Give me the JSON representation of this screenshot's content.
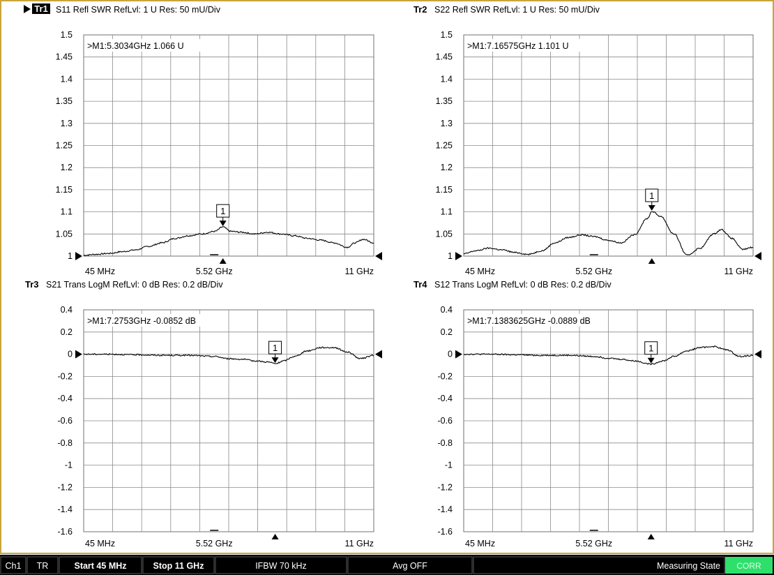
{
  "chart_data": [
    {
      "type": "line",
      "trace_id": "Tr1",
      "trace_active": true,
      "parameter": "S11",
      "format": "Refl SWR",
      "ref_level": "RefLvl: 1  U",
      "resolution": "Res: 50 mU/Div",
      "y_ticks": [
        "1.5",
        "1.45",
        "1.4",
        "1.35",
        "1.3",
        "1.25",
        "1.2",
        "1.15",
        "1.1",
        "1.05",
        "1"
      ],
      "ylim": [
        1,
        1.5
      ],
      "x_ticks": [
        "45 MHz",
        "5.52 GHz",
        "11 GHz"
      ],
      "xlim": [
        0.045,
        11
      ],
      "grid": true,
      "marker": {
        "label": "1",
        "readout": ">M1:5.3034GHz  1.066  U",
        "x": 5.3034,
        "y": 1.066
      },
      "series": [
        {
          "x": [
            0.045,
            0.5,
            1.0,
            1.5,
            2.0,
            2.5,
            3.0,
            3.5,
            4.0,
            4.5,
            5.0,
            5.3,
            5.6,
            6.0,
            6.5,
            7.0,
            7.5,
            8.0,
            8.5,
            9.0,
            9.5,
            10.0,
            10.3,
            10.6,
            11.0
          ],
          "y": [
            1.002,
            1.004,
            1.006,
            1.01,
            1.014,
            1.022,
            1.03,
            1.04,
            1.046,
            1.05,
            1.056,
            1.066,
            1.056,
            1.054,
            1.05,
            1.054,
            1.05,
            1.046,
            1.04,
            1.036,
            1.03,
            1.02,
            1.03,
            1.038,
            1.03
          ]
        }
      ]
    },
    {
      "type": "line",
      "trace_id": "Tr2",
      "trace_active": false,
      "parameter": "S22",
      "format": "Refl SWR",
      "ref_level": "RefLvl: 1  U",
      "resolution": "Res: 50 mU/Div",
      "y_ticks": [
        "1.5",
        "1.45",
        "1.4",
        "1.35",
        "1.3",
        "1.25",
        "1.2",
        "1.15",
        "1.1",
        "1.05",
        "1"
      ],
      "ylim": [
        1,
        1.5
      ],
      "x_ticks": [
        "45 MHz",
        "5.52 GHz",
        "11 GHz"
      ],
      "xlim": [
        0.045,
        11
      ],
      "grid": true,
      "marker": {
        "label": "1",
        "readout": ">M1:7.16575GHz  1.101  U",
        "x": 7.16575,
        "y": 1.101
      },
      "series": [
        {
          "x": [
            0.045,
            0.5,
            1.0,
            1.5,
            2.0,
            2.5,
            3.0,
            3.5,
            4.0,
            4.5,
            5.0,
            5.5,
            6.0,
            6.5,
            7.0,
            7.17,
            7.5,
            8.0,
            8.5,
            9.0,
            9.5,
            9.8,
            10.2,
            10.6,
            11.0
          ],
          "y": [
            1.005,
            1.012,
            1.018,
            1.014,
            1.008,
            1.004,
            1.012,
            1.03,
            1.042,
            1.048,
            1.044,
            1.036,
            1.03,
            1.048,
            1.085,
            1.101,
            1.09,
            1.05,
            1.002,
            1.018,
            1.05,
            1.06,
            1.04,
            1.015,
            1.02
          ]
        }
      ]
    },
    {
      "type": "line",
      "trace_id": "Tr3",
      "trace_active": false,
      "parameter": "S21",
      "format": "Trans LogM",
      "ref_level": "RefLvl: 0  dB",
      "resolution": "Res: 0.2  dB/Div",
      "y_ticks": [
        "0.4",
        "0.2",
        "0",
        "-0.2",
        "-0.4",
        "-0.6",
        "-0.8",
        "-1",
        "-1.2",
        "-1.4",
        "-1.6"
      ],
      "ylim": [
        -1.6,
        0.4
      ],
      "x_ticks": [
        "45 MHz",
        "5.52 GHz",
        "11 GHz"
      ],
      "xlim": [
        0.045,
        11
      ],
      "grid": true,
      "marker": {
        "label": "1",
        "readout": ">M1:7.2753GHz  -0.0852  dB",
        "x": 7.2753,
        "y": -0.0852
      },
      "series": [
        {
          "x": [
            0.045,
            1.0,
            2.0,
            3.0,
            4.0,
            5.0,
            5.5,
            6.0,
            6.5,
            7.0,
            7.3,
            7.6,
            8.0,
            8.5,
            9.0,
            9.5,
            10.0,
            10.5,
            11.0
          ],
          "y": [
            0.0,
            0.0,
            -0.005,
            -0.01,
            -0.01,
            -0.02,
            -0.04,
            -0.045,
            -0.06,
            -0.07,
            -0.085,
            -0.06,
            -0.02,
            0.03,
            0.06,
            0.06,
            0.02,
            -0.04,
            -0.01
          ]
        }
      ]
    },
    {
      "type": "line",
      "trace_id": "Tr4",
      "trace_active": false,
      "parameter": "S12",
      "format": "Trans LogM",
      "ref_level": "RefLvl: 0  dB",
      "resolution": "Res: 0.2  dB/Div",
      "y_ticks": [
        "0.4",
        "0.2",
        "0",
        "-0.2",
        "-0.4",
        "-0.6",
        "-0.8",
        "-1",
        "-1.2",
        "-1.4",
        "-1.6"
      ],
      "ylim": [
        -1.6,
        0.4
      ],
      "x_ticks": [
        "45 MHz",
        "5.52 GHz",
        "11 GHz"
      ],
      "xlim": [
        0.045,
        11
      ],
      "grid": true,
      "marker": {
        "label": "1",
        "readout": ">M1:7.1383625GHz  -0.0889  dB",
        "x": 7.1383625,
        "y": -0.0889
      },
      "series": [
        {
          "x": [
            0.045,
            1.0,
            2.0,
            3.0,
            4.0,
            5.0,
            5.5,
            6.0,
            6.5,
            7.14,
            7.6,
            8.0,
            8.5,
            9.0,
            9.5,
            10.0,
            10.5,
            11.0
          ],
          "y": [
            0.0,
            0.0,
            -0.005,
            -0.01,
            -0.01,
            -0.02,
            -0.035,
            -0.045,
            -0.06,
            -0.089,
            -0.06,
            -0.02,
            0.03,
            0.06,
            0.07,
            0.04,
            -0.02,
            -0.01
          ]
        }
      ]
    }
  ],
  "status_bar": {
    "channel": "Ch1",
    "mode": "TR",
    "start": "Start 45 MHz",
    "stop": "Stop 11 GHz",
    "ifbw": "IFBW 70 kHz",
    "avg": "Avg OFF",
    "state": "Measuring State",
    "corr": "CORR"
  },
  "colors": {
    "frame": "#c9a53a",
    "trace": "#000000",
    "grid": "#8a8a8a",
    "status_bar": "#000000",
    "status_text": "#ffffff",
    "corr_badge": "#2ee06b"
  }
}
